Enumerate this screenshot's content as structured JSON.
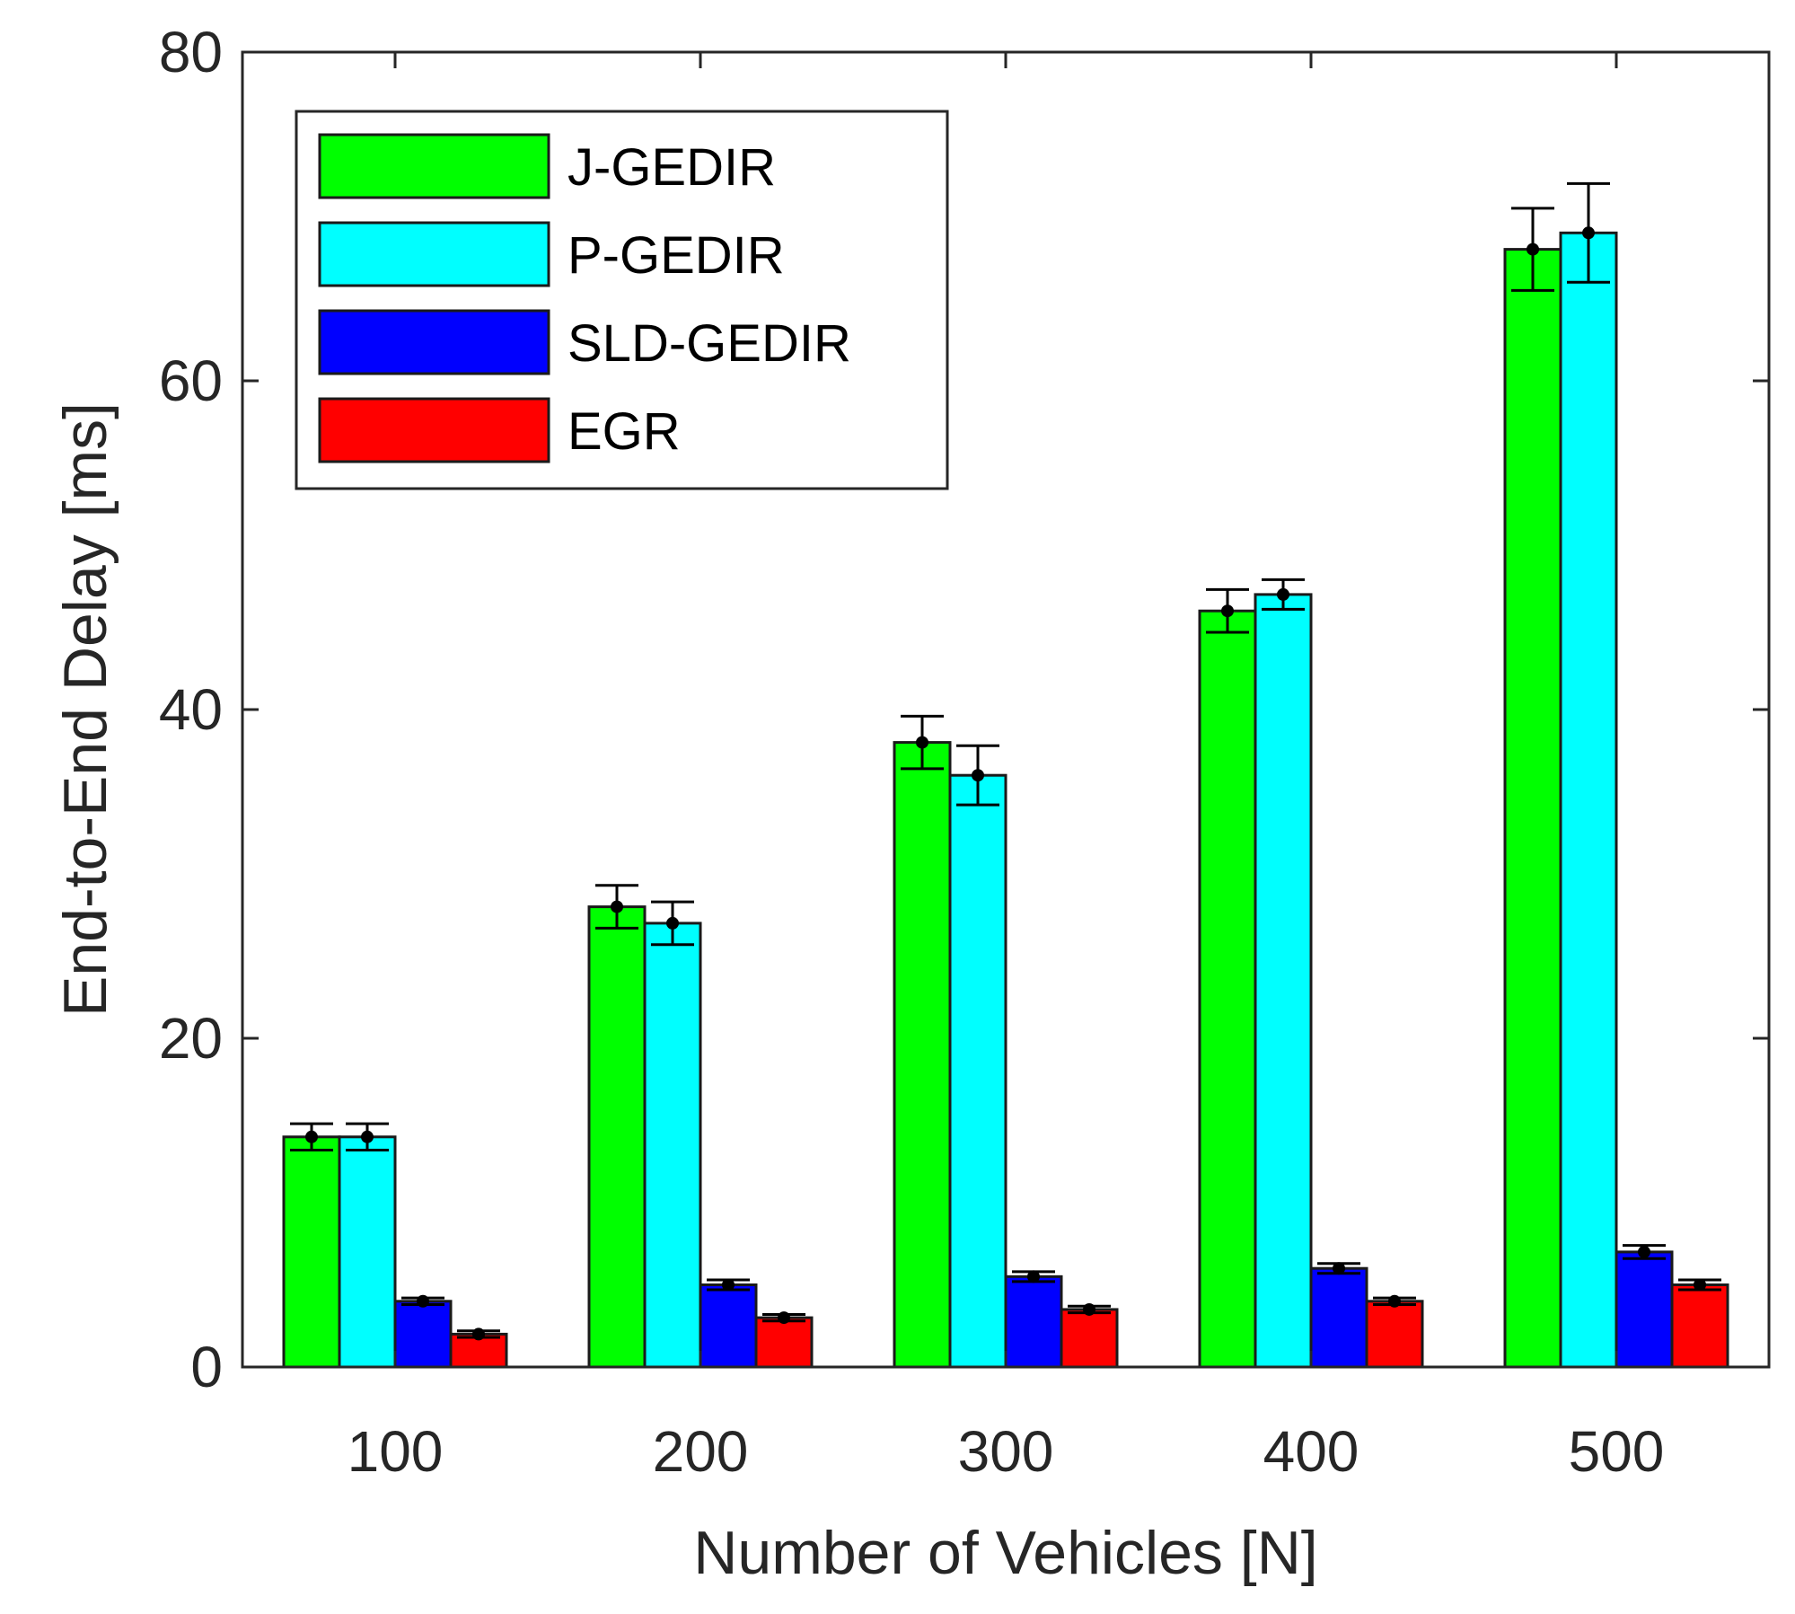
{
  "chart_data": {
    "type": "bar",
    "title": "",
    "xlabel": "Number of Vehicles [N]",
    "ylabel": "End-to-End Delay [ms]",
    "ylim": [
      0,
      80
    ],
    "yticks": [
      "0",
      "20",
      "40",
      "60",
      "80"
    ],
    "categories": [
      "100",
      "200",
      "300",
      "400",
      "500"
    ],
    "grid": false,
    "legend_position": "top-left",
    "series": [
      {
        "name": "J-GEDIR",
        "color": "#00ff00",
        "values": [
          14,
          28,
          38,
          46,
          68
        ],
        "errors": [
          0.8,
          1.3,
          1.6,
          1.3,
          2.5
        ]
      },
      {
        "name": "P-GEDIR",
        "color": "#00ffff",
        "values": [
          14,
          27,
          36,
          47,
          69
        ],
        "errors": [
          0.8,
          1.3,
          1.8,
          0.9,
          3.0
        ]
      },
      {
        "name": "SLD-GEDIR",
        "color": "#0000ff",
        "values": [
          4,
          5,
          5.5,
          6,
          7
        ],
        "errors": [
          0.2,
          0.3,
          0.3,
          0.3,
          0.4
        ]
      },
      {
        "name": "EGR",
        "color": "#ff0000",
        "values": [
          2,
          3,
          3.5,
          4,
          5
        ],
        "errors": [
          0.2,
          0.2,
          0.2,
          0.2,
          0.3
        ]
      }
    ]
  }
}
